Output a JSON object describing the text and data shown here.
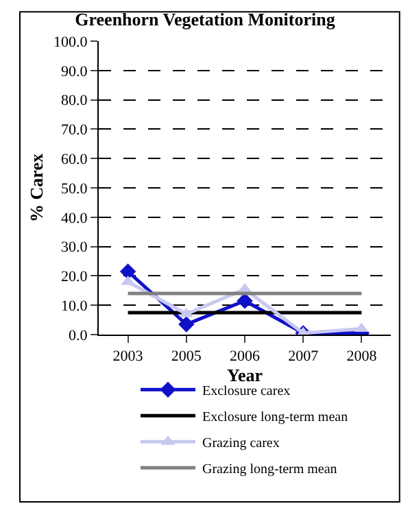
{
  "chart_data": {
    "type": "line",
    "title": "Greenhorn Vegetation Monitoring",
    "xlabel": "Year",
    "ylabel": "% Carex",
    "categories": [
      "2003",
      "2005",
      "2006",
      "2007",
      "2008"
    ],
    "series": [
      {
        "name": "Exclosure carex",
        "color": "#1010c8",
        "marker": "diamond",
        "values": [
          21.5,
          3.5,
          11.5,
          0.5,
          0.5
        ]
      },
      {
        "name": "Exclosure long-term mean",
        "color": "#000000",
        "marker": "none",
        "values": [
          7.5,
          7.5,
          7.5,
          7.5,
          7.5
        ]
      },
      {
        "name": "Grazing carex",
        "color": "#c8c8f0",
        "marker": "triangle",
        "values": [
          18,
          7,
          15.5,
          0.5,
          2
        ]
      },
      {
        "name": "Grazing long-term mean",
        "color": "#808080",
        "marker": "none",
        "values": [
          14,
          14,
          14,
          14,
          14
        ]
      }
    ],
    "ylim": [
      0,
      100
    ],
    "yticks": [
      {
        "value": 0,
        "label": "0.0"
      },
      {
        "value": 10,
        "label": "10.0"
      },
      {
        "value": 20,
        "label": "20.0"
      },
      {
        "value": 30,
        "label": "30.0"
      },
      {
        "value": 40,
        "label": "40.0"
      },
      {
        "value": 50,
        "label": "50.0"
      },
      {
        "value": 60,
        "label": "60.0"
      },
      {
        "value": 70,
        "label": "70.0"
      },
      {
        "value": 80,
        "label": "80.0"
      },
      {
        "value": 90,
        "label": "90.0"
      },
      {
        "value": 100,
        "label": "100.0"
      }
    ],
    "grid": "y",
    "legend": "bottom"
  }
}
